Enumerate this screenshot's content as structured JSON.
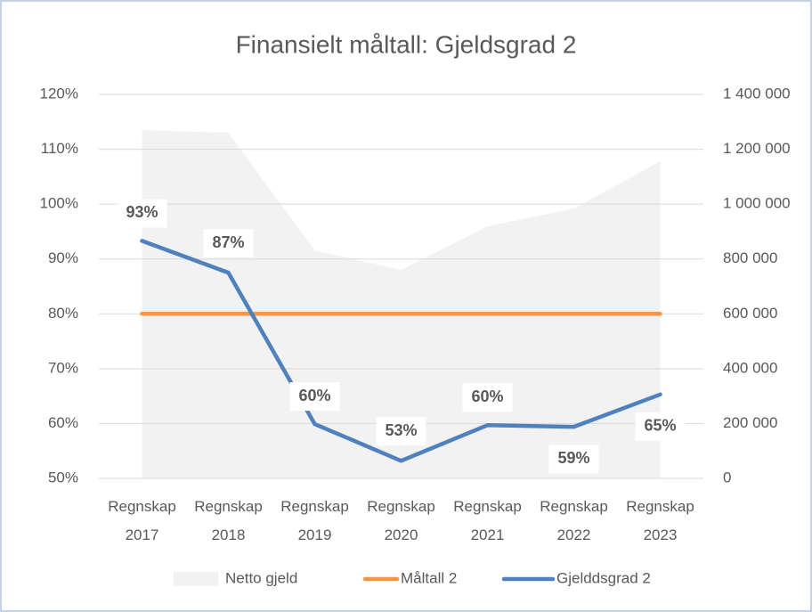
{
  "chart_data": {
    "type": "combo",
    "title": "Finansielt måltall: Gjeldsgrad 2",
    "categories": [
      "Regnskap 2017",
      "Regnskap 2018",
      "Regnskap 2019",
      "Regnskap 2020",
      "Regnskap 2021",
      "Regnskap 2022",
      "Regnskap 2023"
    ],
    "series": [
      {
        "name": "Netto gjeld",
        "type": "area",
        "axis": "y2",
        "color": "#f2f2f2",
        "values": [
          1270000,
          1260000,
          831000,
          760000,
          919000,
          984000,
          1156000
        ]
      },
      {
        "name": "Måltall 2",
        "type": "line",
        "color": "#f79646",
        "values": [
          80,
          80,
          80,
          80,
          80,
          80,
          80
        ]
      },
      {
        "name": "Gjelddsgrad 2",
        "type": "line",
        "color": "#4f81bd",
        "values": [
          93.3,
          87.5,
          59.9,
          53.2,
          59.7,
          59.4,
          65.3
        ],
        "value_labels": [
          "93%",
          "87%",
          "60%",
          "53%",
          "60%",
          "59%",
          "65%"
        ]
      }
    ],
    "ylim": [
      50,
      120
    ],
    "yticks": [
      {
        "value": 50,
        "label": "50%"
      },
      {
        "value": 60,
        "label": "60%"
      },
      {
        "value": 70,
        "label": "70%"
      },
      {
        "value": 80,
        "label": "80%"
      },
      {
        "value": 90,
        "label": "90%"
      },
      {
        "value": 100,
        "label": "100%"
      },
      {
        "value": 110,
        "label": "110%"
      },
      {
        "value": 120,
        "label": "120%"
      }
    ],
    "y2lim": [
      0,
      1400000
    ],
    "y2ticks": [
      0,
      {
        "value": 200000,
        "label": "200 000"
      },
      {
        "value": 400000,
        "label": "400 000"
      },
      {
        "value": 600000,
        "label": "600 000"
      },
      {
        "value": 800000,
        "label": "800 000"
      },
      {
        "value": 1000000,
        "label": "1 000 000"
      },
      {
        "value": 1200000,
        "label": "1 200 000"
      },
      {
        "value": 1400000,
        "label": "1 400 000"
      }
    ],
    "grid": true,
    "legend": "bottom"
  }
}
